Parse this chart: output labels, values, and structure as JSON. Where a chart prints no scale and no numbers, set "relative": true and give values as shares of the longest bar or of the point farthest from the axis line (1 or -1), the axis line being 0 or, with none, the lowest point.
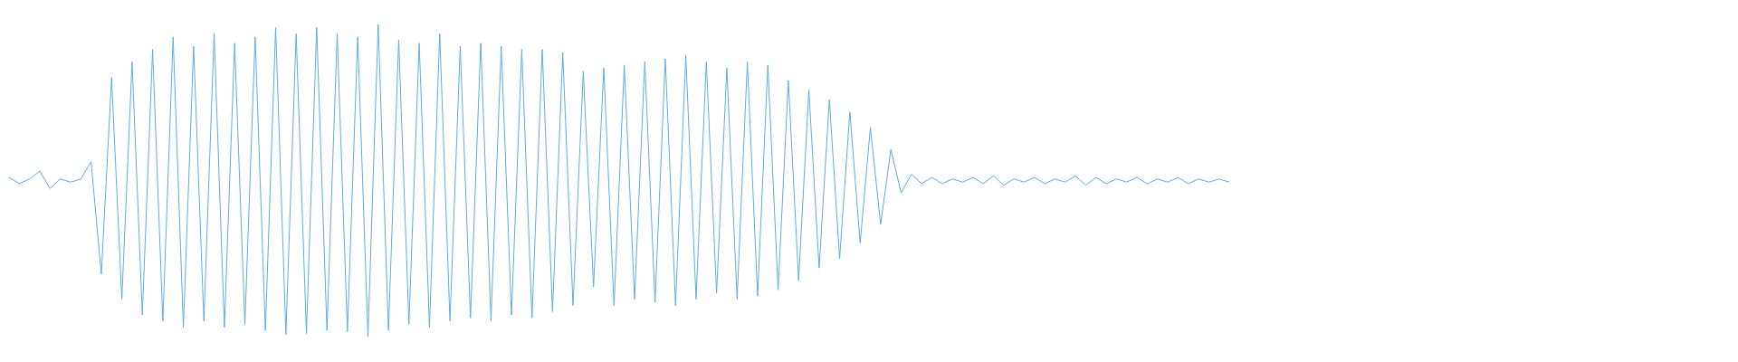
{
  "chart_data": {
    "type": "line",
    "relative": true,
    "categories": [
      null,
      null,
      null,
      null,
      null,
      null,
      null,
      null,
      null,
      null,
      null,
      null,
      null,
      null,
      null,
      null,
      null,
      null,
      null,
      null,
      null,
      null,
      null,
      null,
      null,
      null,
      null,
      null,
      null,
      null,
      null,
      null,
      null,
      null,
      null,
      null,
      null,
      null,
      null,
      null,
      null,
      null,
      null,
      null,
      null,
      null,
      null,
      null,
      null,
      null,
      null,
      null,
      null,
      null,
      null,
      null,
      null,
      null,
      null,
      null,
      null,
      null,
      null,
      null,
      null,
      null,
      null,
      null,
      null,
      null,
      null,
      null,
      null,
      null,
      null,
      null,
      null,
      null,
      null,
      null,
      null,
      null,
      null,
      null,
      null,
      null,
      null,
      null,
      null,
      null,
      null,
      null,
      null,
      null,
      null,
      null,
      null,
      null,
      null,
      null,
      null,
      null,
      null,
      null,
      null,
      null,
      null,
      null,
      null,
      null,
      null,
      null,
      null,
      null,
      null,
      null,
      null,
      null,
      null,
      null
    ],
    "series": [
      {
        "color": "#5dade2",
        "values": [
          0.51,
          0.49,
          0.505,
          0.53,
          0.475,
          0.505,
          0.495,
          0.505,
          0.56,
          0.2,
          0.83,
          0.12,
          0.88,
          0.07,
          0.92,
          0.05,
          0.96,
          0.03,
          0.93,
          0.05,
          0.97,
          0.03,
          0.94,
          0.04,
          0.96,
          0.02,
          0.99,
          0.007,
          0.97,
          0.01,
          0.99,
          0.02,
          0.97,
          0.015,
          0.96,
          0,
          1,
          0.02,
          0.95,
          0.04,
          0.94,
          0.03,
          0.97,
          0.05,
          0.93,
          0.06,
          0.94,
          0.05,
          0.93,
          0.07,
          0.92,
          0.06,
          0.92,
          0.08,
          0.91,
          0.1,
          0.85,
          0.16,
          0.86,
          0.1,
          0.87,
          0.12,
          0.88,
          0.11,
          0.89,
          0.1,
          0.9,
          0.12,
          0.88,
          0.14,
          0.86,
          0.12,
          0.88,
          0.13,
          0.87,
          0.15,
          0.82,
          0.18,
          0.79,
          0.22,
          0.76,
          0.25,
          0.72,
          0.3,
          0.67,
          0.36,
          0.6,
          0.46,
          0.52,
          0.49,
          0.51,
          0.49,
          0.505,
          0.495,
          0.51,
          0.49,
          0.515,
          0.485,
          0.505,
          0.495,
          0.51,
          0.49,
          0.505,
          0.495,
          0.515,
          0.485,
          0.51,
          0.49,
          0.505,
          0.495,
          0.51,
          0.49,
          0.505,
          0.495,
          0.51,
          0.49,
          0.505,
          0.495,
          0.505,
          0.495
        ]
      }
    ]
  }
}
